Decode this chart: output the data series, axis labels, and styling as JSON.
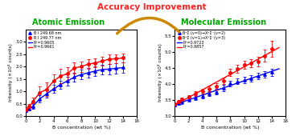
{
  "title": "Accuracy Improvement",
  "title_color": "#FF2222",
  "left_title": "Atomic Emission",
  "right_title": "Molecular Emission",
  "subplot_title_color": "#00AA00",
  "left": {
    "blue_x": [
      0,
      0.5,
      1,
      2,
      3,
      4,
      5,
      6,
      7,
      8,
      9,
      10,
      11,
      12,
      13,
      14
    ],
    "blue_y": [
      0.22,
      0.3,
      0.4,
      0.7,
      0.9,
      1.1,
      1.28,
      1.42,
      1.58,
      1.68,
      1.75,
      1.82,
      1.88,
      1.9,
      1.93,
      1.96
    ],
    "blue_yerr": [
      0.06,
      0.08,
      0.1,
      0.15,
      0.16,
      0.16,
      0.16,
      0.18,
      0.18,
      0.19,
      0.2,
      0.2,
      0.2,
      0.21,
      0.22,
      0.22
    ],
    "red_x": [
      0,
      0.5,
      1,
      2,
      3,
      4,
      5,
      6,
      7,
      8,
      9,
      10,
      11,
      12,
      13,
      14
    ],
    "red_y": [
      0.27,
      0.4,
      0.58,
      0.95,
      1.08,
      1.42,
      1.62,
      1.72,
      1.95,
      2.0,
      2.1,
      2.15,
      2.22,
      2.3,
      2.32,
      2.35
    ],
    "red_yerr": [
      0.06,
      0.1,
      0.18,
      0.26,
      0.28,
      0.28,
      0.28,
      0.26,
      0.23,
      0.21,
      0.2,
      0.19,
      0.18,
      0.18,
      0.18,
      0.18
    ],
    "blue_label": "B I 249.68 nm",
    "red_label": "B I 249.77 nm",
    "blue_r2": "R²=0.9605",
    "red_r2": "R²=0.9661",
    "xlabel": "B concentration (wt %)",
    "ylabel": "Intensity (×10³ counts)",
    "xlim": [
      0,
      16
    ],
    "ylim": [
      0,
      3.5
    ],
    "yticks": [
      0,
      0.5,
      1.0,
      1.5,
      2.0,
      2.5,
      3.0
    ]
  },
  "right": {
    "blue_x": [
      0,
      0.5,
      1,
      2,
      3,
      4,
      5,
      6,
      7,
      8,
      9,
      10,
      11,
      12,
      13,
      14
    ],
    "blue_y": [
      3.35,
      3.4,
      3.45,
      3.52,
      3.58,
      3.63,
      3.7,
      3.76,
      3.88,
      4.02,
      4.08,
      4.12,
      4.18,
      4.25,
      4.3,
      4.37
    ],
    "blue_yerr": [
      0.05,
      0.05,
      0.06,
      0.06,
      0.07,
      0.07,
      0.08,
      0.08,
      0.09,
      0.09,
      0.09,
      0.1,
      0.1,
      0.1,
      0.11,
      0.11
    ],
    "red_x": [
      0,
      0.5,
      1,
      2,
      3,
      4,
      5,
      6,
      7,
      8,
      9,
      10,
      11,
      12,
      13,
      14
    ],
    "red_y": [
      3.37,
      3.46,
      3.53,
      3.6,
      3.7,
      3.78,
      3.85,
      3.93,
      4.1,
      4.36,
      4.48,
      4.6,
      4.65,
      4.7,
      4.88,
      5.1
    ],
    "red_yerr": [
      0.05,
      0.05,
      0.06,
      0.06,
      0.07,
      0.08,
      0.09,
      0.1,
      0.11,
      0.12,
      0.13,
      0.13,
      0.13,
      0.15,
      0.18,
      0.25
    ],
    "blue_label": "B²Σ (v=0)→X²Σ⁻(v=2)",
    "red_label": "B²Σ (v=1)→X²Σ⁻(v=3)",
    "blue_r2": "R²=0.9723",
    "red_r2": "R²=0.9857",
    "xlabel": "B concentration (wt %)",
    "ylabel": "Intensity (×10³ counts)",
    "xlim": [
      0,
      16
    ],
    "ylim": [
      3.0,
      5.7
    ],
    "yticks": [
      3.0,
      3.5,
      4.0,
      4.5,
      5.0,
      5.5
    ]
  },
  "arrow_color": "#CC8800",
  "bg_color": "#FFFFFF",
  "plot_bg": "#FFFFFF"
}
